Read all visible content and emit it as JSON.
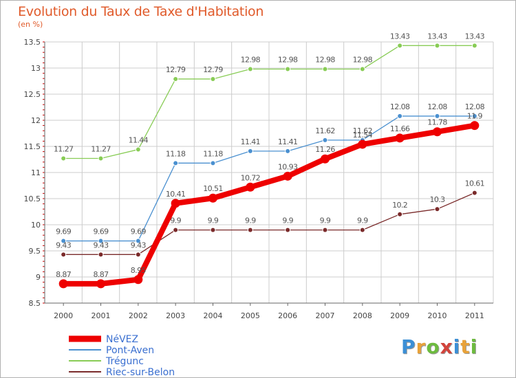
{
  "header": {
    "title": "Evolution du Taux de Taxe d'Habitation",
    "subtitle": "(en %)"
  },
  "logo": {
    "letters": [
      "P",
      "r",
      "o",
      "x",
      "i",
      "t",
      "i"
    ],
    "colors": [
      "#3b8fd6",
      "#e8a23a",
      "#6dbb3f",
      "#d2433b",
      "#3b8fd6",
      "#e8a23a",
      "#6dbb3f"
    ]
  },
  "chart_data": {
    "type": "line",
    "title": "Evolution du Taux de Taxe d'Habitation",
    "ylabel": "(en %)",
    "xlabel": "",
    "x": [
      "2000",
      "2001",
      "2002",
      "2003",
      "2004",
      "2005",
      "2006",
      "2007",
      "2008",
      "2009",
      "2010",
      "2011"
    ],
    "ylim": [
      8.5,
      13.5
    ],
    "yticks": [
      "8.5",
      "9",
      "9.5",
      "10",
      "10.5",
      "11",
      "11.5",
      "12",
      "12.5",
      "13",
      "13.5"
    ],
    "legend_position": "bottom-left",
    "series": [
      {
        "name": "NéVEZ",
        "color": "#ee0000",
        "values": [
          8.87,
          8.87,
          8.95,
          10.41,
          10.51,
          10.72,
          10.93,
          11.26,
          11.54,
          11.66,
          11.78,
          11.9
        ],
        "labels": [
          "8.87",
          "8.87",
          "8.95",
          "10.41",
          "10.51",
          "10.72",
          "10.93",
          "11.26",
          "11.54",
          "11.66",
          "11.78",
          "11.9"
        ]
      },
      {
        "name": "Pont-Aven",
        "color": "#4a90d0",
        "values": [
          9.69,
          9.69,
          9.69,
          11.18,
          11.18,
          11.41,
          11.41,
          11.62,
          11.62,
          12.08,
          12.08,
          12.08
        ],
        "labels": [
          "9.69",
          "9.69",
          "9.69",
          "11.18",
          "11.18",
          "11.41",
          "11.41",
          "11.62",
          "11.62",
          "12.08",
          "12.08",
          "12.08"
        ]
      },
      {
        "name": "Trégunc",
        "color": "#88cc55",
        "values": [
          11.27,
          11.27,
          11.44,
          12.79,
          12.79,
          12.98,
          12.98,
          12.98,
          12.98,
          13.43,
          13.43,
          13.43
        ],
        "labels": [
          "11.27",
          "11.27",
          "11.44",
          "12.79",
          "12.79",
          "12.98",
          "12.98",
          "12.98",
          "12.98",
          "13.43",
          "13.43",
          "13.43"
        ]
      },
      {
        "name": "Riec-sur-Belon",
        "color": "#7a2a2a",
        "values": [
          9.43,
          9.43,
          9.43,
          9.9,
          9.9,
          9.9,
          9.9,
          9.9,
          9.9,
          10.2,
          10.3,
          10.61
        ],
        "labels": [
          "9.43",
          "9.43",
          "9.43",
          "9.9",
          "9.9",
          "9.9",
          "9.9",
          "9.9",
          "9.9",
          "10.2",
          "10.3",
          "10.61"
        ]
      }
    ]
  }
}
